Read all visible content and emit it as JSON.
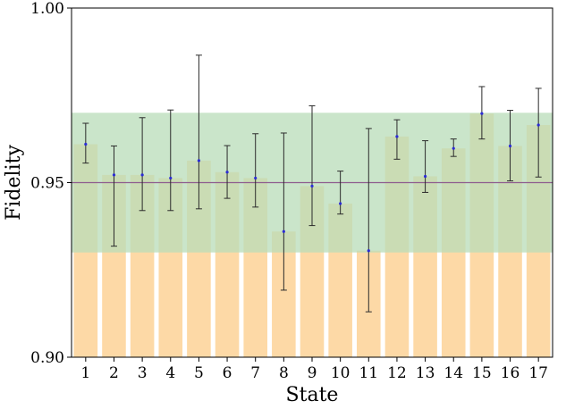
{
  "chart_data": {
    "type": "bar",
    "xlabel": "State",
    "ylabel": "Fidelity",
    "ylim": [
      0.9,
      1.0
    ],
    "yticks": [
      0.9,
      0.95,
      1.0
    ],
    "ytick_labels": [
      "0.90",
      "0.95",
      "1.00"
    ],
    "categories": [
      "1",
      "2",
      "3",
      "4",
      "5",
      "6",
      "7",
      "8",
      "9",
      "10",
      "11",
      "12",
      "13",
      "14",
      "15",
      "16",
      "17"
    ],
    "values": [
      0.961,
      0.9522,
      0.9522,
      0.9513,
      0.9563,
      0.953,
      0.9513,
      0.936,
      0.949,
      0.944,
      0.9305,
      0.9632,
      0.9518,
      0.9598,
      0.9698,
      0.9605,
      0.9665
    ],
    "error_low": [
      0.9556,
      0.9318,
      0.942,
      0.942,
      0.9425,
      0.9455,
      0.943,
      0.9192,
      0.9377,
      0.941,
      0.913,
      0.9567,
      0.9472,
      0.9575,
      0.9625,
      0.9505,
      0.9516
    ],
    "error_high": [
      0.967,
      0.9605,
      0.9686,
      0.9708,
      0.9865,
      0.9606,
      0.964,
      0.9642,
      0.972,
      0.9533,
      0.9655,
      0.968,
      0.962,
      0.9625,
      0.9775,
      0.9707,
      0.977
    ],
    "reference_line": 0.95,
    "band": [
      0.93,
      0.97
    ],
    "grid": false,
    "colors": {
      "bar": "#fdd9a6",
      "band": "#b8dcb8",
      "reference_line": "#8e5b8e",
      "error_bar": "#2b2b2b",
      "marker": "#2b2bd6",
      "axis": "#000000"
    }
  }
}
